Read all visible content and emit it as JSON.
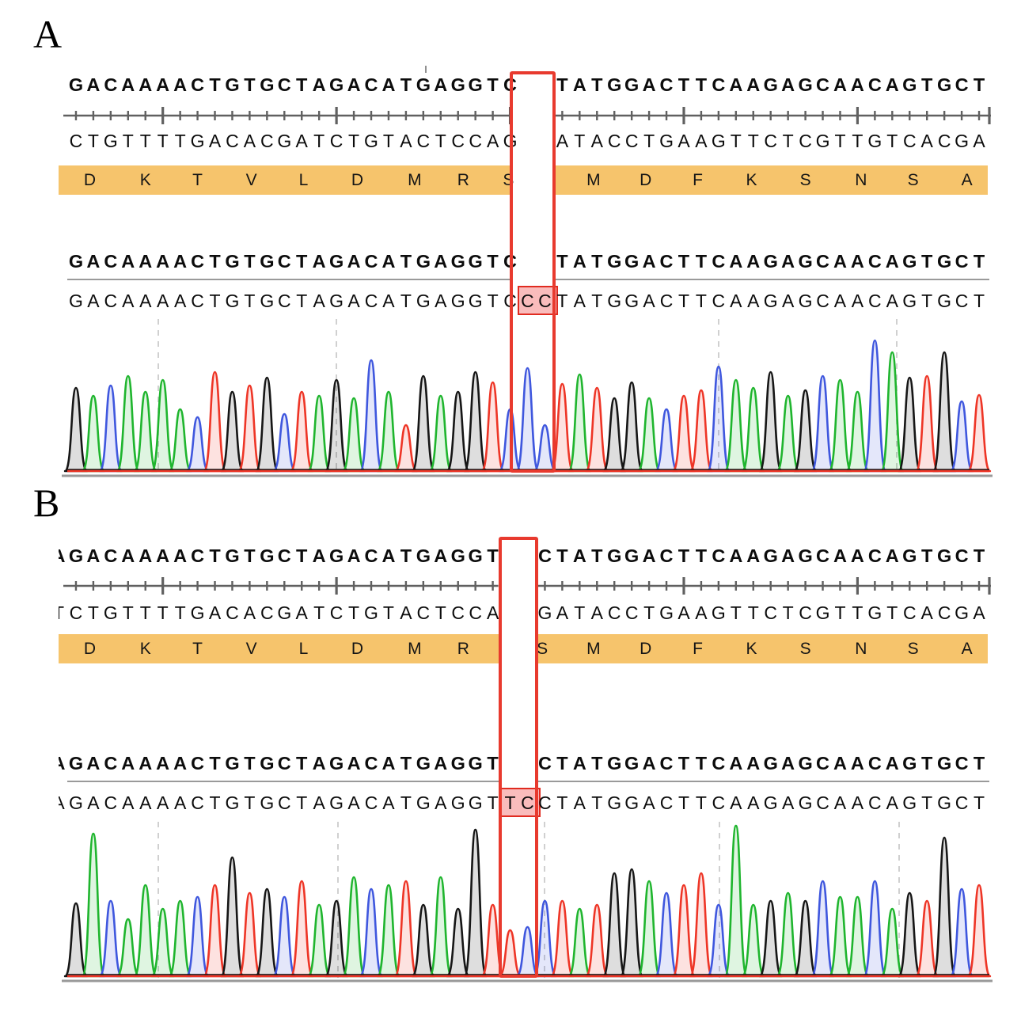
{
  "chart_data": {
    "type": "area",
    "figure_type": "sanger-sequencing-chromatogram",
    "legend_position": "none",
    "grid": "dashed-vertical",
    "panels": [
      {
        "label": "A",
        "reference": {
          "lead": "",
          "left": "GACAAAACTGTGCTAGACATGAGGTC",
          "right": "TATGGACTTCAAGAGCAACAGTGCT"
        },
        "complement": {
          "lead": "",
          "left": "CTGTTTTGACACGATCTGTACTCCAG",
          "right": "ATACCTGAAGTTCTCGTTGTCACGA"
        },
        "amino_acids": [
          "D",
          "K",
          "T",
          "V",
          "L",
          "D",
          "M",
          "R",
          "S",
          "M",
          "D",
          "F",
          "K",
          "S",
          "N",
          "S",
          "A"
        ],
        "called": {
          "lead": "",
          "left": "GACAAAACTGTGCTAGACATGAGGTC",
          "variant": "CC",
          "right": "TATGGACTTCAAGAGCAACAGTGCT"
        },
        "gap_start_slot": 26,
        "trace": {
          "bases": "GACAAAACTGTGCTAGACATGAGGTCCCTATGGACTTCAAGAGCAACAGTGCT",
          "heights": [
            105,
            95,
            108,
            120,
            100,
            115,
            78,
            68,
            125,
            100,
            108,
            118,
            72,
            100,
            95,
            115,
            92,
            140,
            100,
            58,
            120,
            95,
            100,
            125,
            112,
            78,
            130,
            58,
            110,
            122,
            105,
            92,
            112,
            92,
            78,
            95,
            102,
            132,
            115,
            105,
            125,
            95,
            102,
            120,
            115,
            100,
            165,
            150,
            118,
            120,
            150,
            88,
            96
          ]
        }
      },
      {
        "label": "B",
        "reference": {
          "lead": "A",
          "left": "GACAAAACTGTGCTAGACATGAGGT",
          "right": "CTATGGACTTCAAGAGCAACAGTGCT"
        },
        "complement": {
          "lead": "T",
          "left": "CTGTTTTGACACGATCTGTACTCCA",
          "right": "GATACCTGAAGTTCTCGTTGTCACGA"
        },
        "amino_acids": [
          "D",
          "K",
          "T",
          "V",
          "L",
          "D",
          "M",
          "R",
          "S",
          "M",
          "D",
          "F",
          "K",
          "S",
          "N",
          "S",
          "A"
        ],
        "called": {
          "lead": "A",
          "left": "GACAAAACTGTGCTAGACATGAGGT",
          "variant": "TC",
          "right": "CTATGGACTTCAAGAGCAACAGTGCT"
        },
        "gap_start_slot": 25,
        "trace": {
          "bases": "GACAAAACTGTGCTAGACATGAGGTTCCTATGGACTTCAAGAGCAACAGTGCT",
          "heights": [
            92,
            180,
            95,
            72,
            115,
            85,
            95,
            100,
            115,
            150,
            105,
            110,
            100,
            120,
            90,
            95,
            125,
            110,
            115,
            120,
            90,
            125,
            85,
            185,
            90,
            58,
            62,
            95,
            95,
            85,
            90,
            130,
            135,
            120,
            105,
            115,
            130,
            90,
            190,
            90,
            95,
            105,
            95,
            120,
            100,
            100,
            120,
            85,
            105,
            95,
            175,
            110,
            115
          ]
        }
      }
    ],
    "base_colors": {
      "A": "#1fb52e",
      "C": "#3f57de",
      "G": "#161616",
      "T": "#ee3526"
    },
    "accent_colors": {
      "highlight_box": "#e83a2e",
      "variant_cell_fill": "#f9bcbc",
      "variant_cell_border": "#e02b20",
      "aa_band": "#f6c46c",
      "ruler": "#606060",
      "separator": "#9a9a9a",
      "baseline": "#999999",
      "gridline": "#c4c4c4"
    }
  }
}
